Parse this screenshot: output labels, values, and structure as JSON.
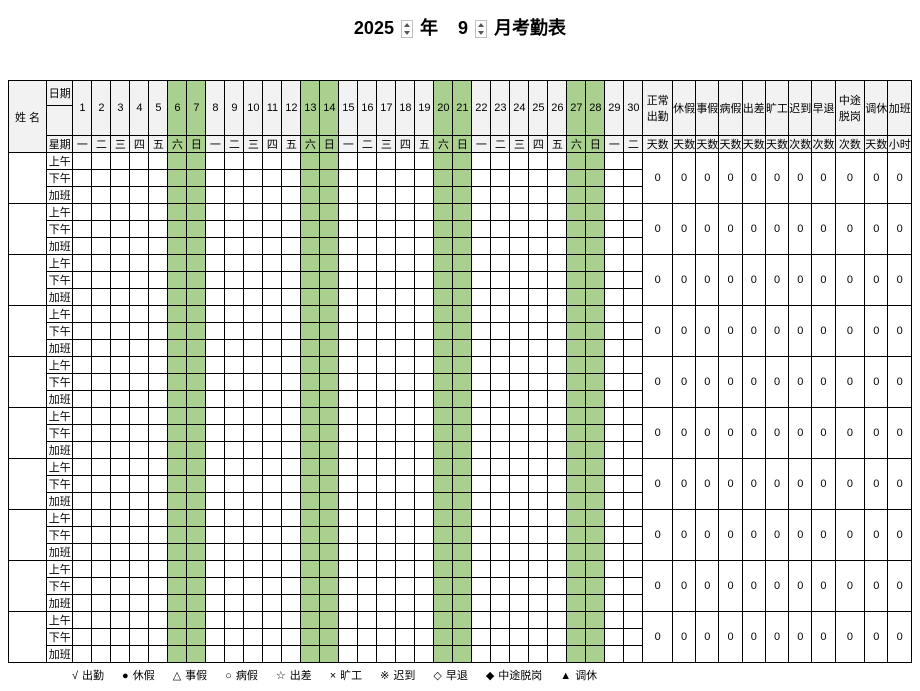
{
  "title": {
    "year": "2025",
    "yearLabel": "年",
    "month": "9",
    "monthLabel": "月考勤表"
  },
  "headers": {
    "name": "姓 名",
    "date": "日期",
    "week": "星期",
    "periods": [
      "上午",
      "下午",
      "加班"
    ]
  },
  "days": {
    "count": 30,
    "nums": [
      "1",
      "2",
      "3",
      "4",
      "5",
      "6",
      "7",
      "8",
      "9",
      "10",
      "11",
      "12",
      "13",
      "14",
      "15",
      "16",
      "17",
      "18",
      "19",
      "20",
      "21",
      "22",
      "23",
      "24",
      "25",
      "26",
      "27",
      "28",
      "29",
      "30"
    ],
    "wk": [
      "一",
      "二",
      "三",
      "四",
      "五",
      "六",
      "日",
      "一",
      "二",
      "三",
      "四",
      "五",
      "六",
      "日",
      "一",
      "二",
      "三",
      "四",
      "五",
      "六",
      "日",
      "一",
      "二",
      "三",
      "四",
      "五",
      "六",
      "日",
      "一",
      "二"
    ],
    "weekend": [
      false,
      false,
      false,
      false,
      false,
      true,
      true,
      false,
      false,
      false,
      false,
      false,
      true,
      true,
      false,
      false,
      false,
      false,
      false,
      true,
      true,
      false,
      false,
      false,
      false,
      false,
      true,
      true,
      false,
      false
    ]
  },
  "summary": {
    "cols": [
      {
        "label": "正常\n出勤",
        "unit": "天数",
        "wide": true
      },
      {
        "label": "休假",
        "unit": "天数"
      },
      {
        "label": "事假",
        "unit": "天数"
      },
      {
        "label": "病假",
        "unit": "天数"
      },
      {
        "label": "出差",
        "unit": "天数"
      },
      {
        "label": "旷工",
        "unit": "天数"
      },
      {
        "label": "迟到",
        "unit": "次数"
      },
      {
        "label": "早退",
        "unit": "次数"
      },
      {
        "label": "中途\n脱岗",
        "unit": "次数",
        "wide": true
      },
      {
        "label": "调休",
        "unit": "天数"
      },
      {
        "label": "加班",
        "unit": "小时"
      }
    ],
    "zero": "0"
  },
  "employeeCount": 10,
  "legend": [
    {
      "sym": "√",
      "label": "出勤"
    },
    {
      "sym": "●",
      "label": "休假"
    },
    {
      "sym": "△",
      "label": "事假"
    },
    {
      "sym": "○",
      "label": "病假"
    },
    {
      "sym": "☆",
      "label": "出差"
    },
    {
      "sym": "×",
      "label": "旷工"
    },
    {
      "sym": "※",
      "label": "迟到"
    },
    {
      "sym": "◇",
      "label": "早退"
    },
    {
      "sym": "◆",
      "label": "中途脱岗"
    },
    {
      "sym": "▲",
      "label": "调休"
    }
  ],
  "colors": {
    "headerBg": "#f2f2f2",
    "weekendBg": "#a9d08e",
    "border": "#000000"
  }
}
